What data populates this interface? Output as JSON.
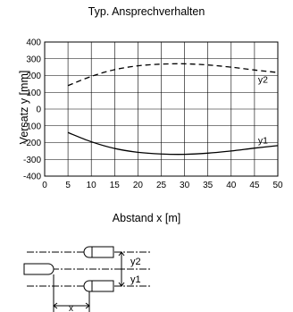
{
  "chart_data": {
    "type": "line",
    "title": "Typ. Ansprechverhalten",
    "xlabel": "Abstand x [m]",
    "ylabel": "Versatz y [mm]",
    "xlim": [
      0,
      50
    ],
    "ylim": [
      -400,
      400
    ],
    "xticks": [
      0,
      5,
      10,
      15,
      20,
      25,
      30,
      35,
      40,
      45,
      50
    ],
    "yticks": [
      400,
      300,
      200,
      100,
      0,
      -100,
      -200,
      -300,
      -400
    ],
    "grid": true,
    "series": [
      {
        "name": "y2",
        "style": "dashed",
        "x": [
          5,
          10,
          15,
          20,
          25,
          30,
          35,
          40,
          45,
          50
        ],
        "y": [
          140,
          195,
          235,
          258,
          268,
          270,
          263,
          250,
          233,
          218
        ]
      },
      {
        "name": "y1",
        "style": "solid",
        "x": [
          5,
          10,
          15,
          20,
          25,
          30,
          35,
          40,
          45,
          50
        ],
        "y": [
          -140,
          -195,
          -235,
          -258,
          -268,
          -270,
          -263,
          -250,
          -233,
          -218
        ]
      }
    ]
  },
  "diagram": {
    "labels": {
      "y2": "y2",
      "y1": "y1",
      "x": "x"
    }
  }
}
